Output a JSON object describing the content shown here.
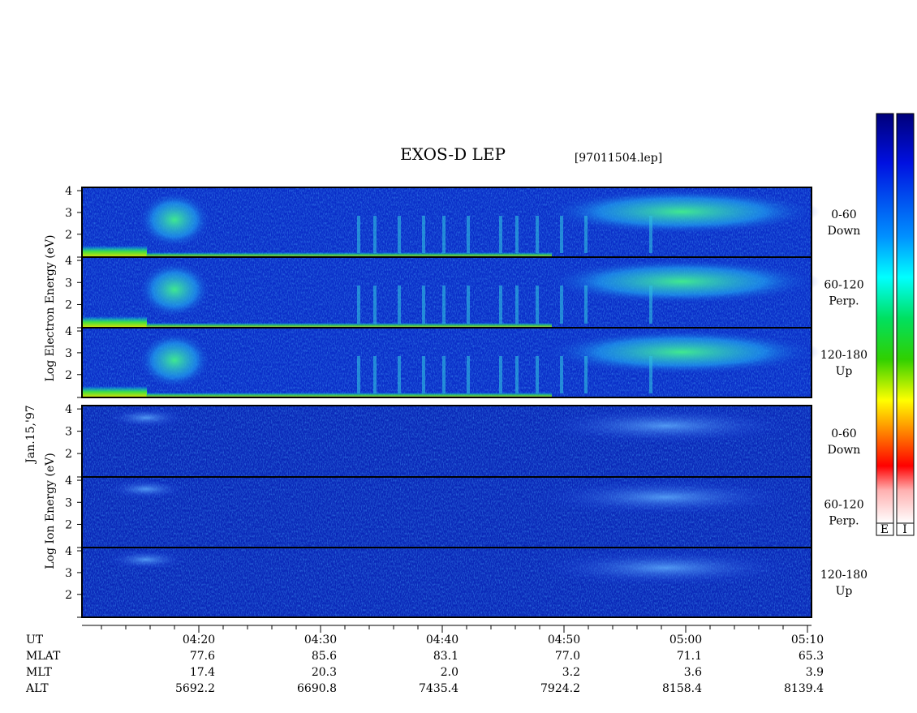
{
  "header": {
    "title": "EXOS-D LEP",
    "file": "[97011504.lep]"
  },
  "date": "Jan.15,'97",
  "energy_axis": {
    "ylim": [
      0.95,
      4.15
    ],
    "yticks": [
      2,
      3,
      4
    ]
  },
  "electron": {
    "axis_label": "Log Electron Energy (eV)",
    "panels": [
      {
        "lines": [
          "0-60",
          "Down"
        ]
      },
      {
        "lines": [
          "60-120",
          "Perp."
        ]
      },
      {
        "lines": [
          "120-180",
          "Up"
        ]
      }
    ]
  },
  "ion": {
    "axis_label": "Log Ion Energy (eV)",
    "panels": [
      {
        "lines": [
          "0-60",
          "Down"
        ]
      },
      {
        "lines": [
          "60-120",
          "Perp."
        ]
      },
      {
        "lines": [
          "120-180",
          "Up"
        ]
      }
    ]
  },
  "colorbars": [
    "E",
    "I"
  ],
  "ut_axis": {
    "label": "UT",
    "ticks": [
      "04:20",
      "04:30",
      "04:40",
      "04:50",
      "05:00",
      "05:10"
    ]
  },
  "ephemeris": [
    {
      "label": "MLAT",
      "values": [
        "77.6",
        "85.6",
        "83.1",
        "77.0",
        "71.1",
        "65.3"
      ]
    },
    {
      "label": "MLT",
      "values": [
        "17.4",
        "20.3",
        "2.0",
        "3.2",
        "3.6",
        "3.9"
      ]
    },
    {
      "label": "ALT",
      "values": [
        "5692.2",
        "6690.8",
        "7435.4",
        "7924.2",
        "8158.4",
        "8139.4"
      ]
    }
  ]
}
